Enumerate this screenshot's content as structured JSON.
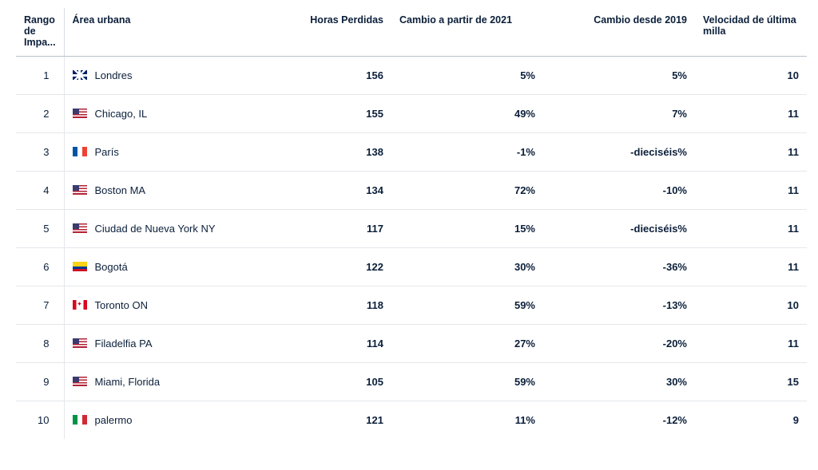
{
  "columns": {
    "rank": "Rango de Impa...",
    "area": "Área urbana",
    "hours": "Horas Perdidas",
    "change21": "Cambio a partir de 2021",
    "change19": "Cambio desde 2019",
    "velocity": "Velocidad de última milla"
  },
  "rows": [
    {
      "rank": "1",
      "flag": "gb",
      "area": "Londres",
      "hours": "156",
      "c21": "5%",
      "c19": "5%",
      "vel": "10"
    },
    {
      "rank": "2",
      "flag": "us",
      "area": "Chicago, IL",
      "hours": "155",
      "c21": "49%",
      "c19": "7%",
      "vel": "11"
    },
    {
      "rank": "3",
      "flag": "fr",
      "area": "París",
      "hours": "138",
      "c21": "-1%",
      "c19": "-dieciséis%",
      "vel": "11"
    },
    {
      "rank": "4",
      "flag": "us",
      "area": "Boston MA",
      "hours": "134",
      "c21": "72%",
      "c19": "-10%",
      "vel": "11"
    },
    {
      "rank": "5",
      "flag": "us",
      "area": "Ciudad de Nueva York NY",
      "hours": "117",
      "c21": "15%",
      "c19": "-dieciséis%",
      "vel": "11"
    },
    {
      "rank": "6",
      "flag": "co",
      "area": "Bogotá",
      "hours": "122",
      "c21": "30%",
      "c19": "-36%",
      "vel": "11"
    },
    {
      "rank": "7",
      "flag": "ca",
      "area": "Toronto ON",
      "hours": "118",
      "c21": "59%",
      "c19": "-13%",
      "vel": "10"
    },
    {
      "rank": "8",
      "flag": "us",
      "area": "Filadelfia PA",
      "hours": "114",
      "c21": "27%",
      "c19": "-20%",
      "vel": "11"
    },
    {
      "rank": "9",
      "flag": "us",
      "area": "Miami, Florida",
      "hours": "105",
      "c21": "59%",
      "c19": "30%",
      "vel": "15"
    },
    {
      "rank": "10",
      "flag": "it",
      "area": "palermo",
      "hours": "121",
      "c21": "11%",
      "c19": "-12%",
      "vel": "9"
    }
  ]
}
